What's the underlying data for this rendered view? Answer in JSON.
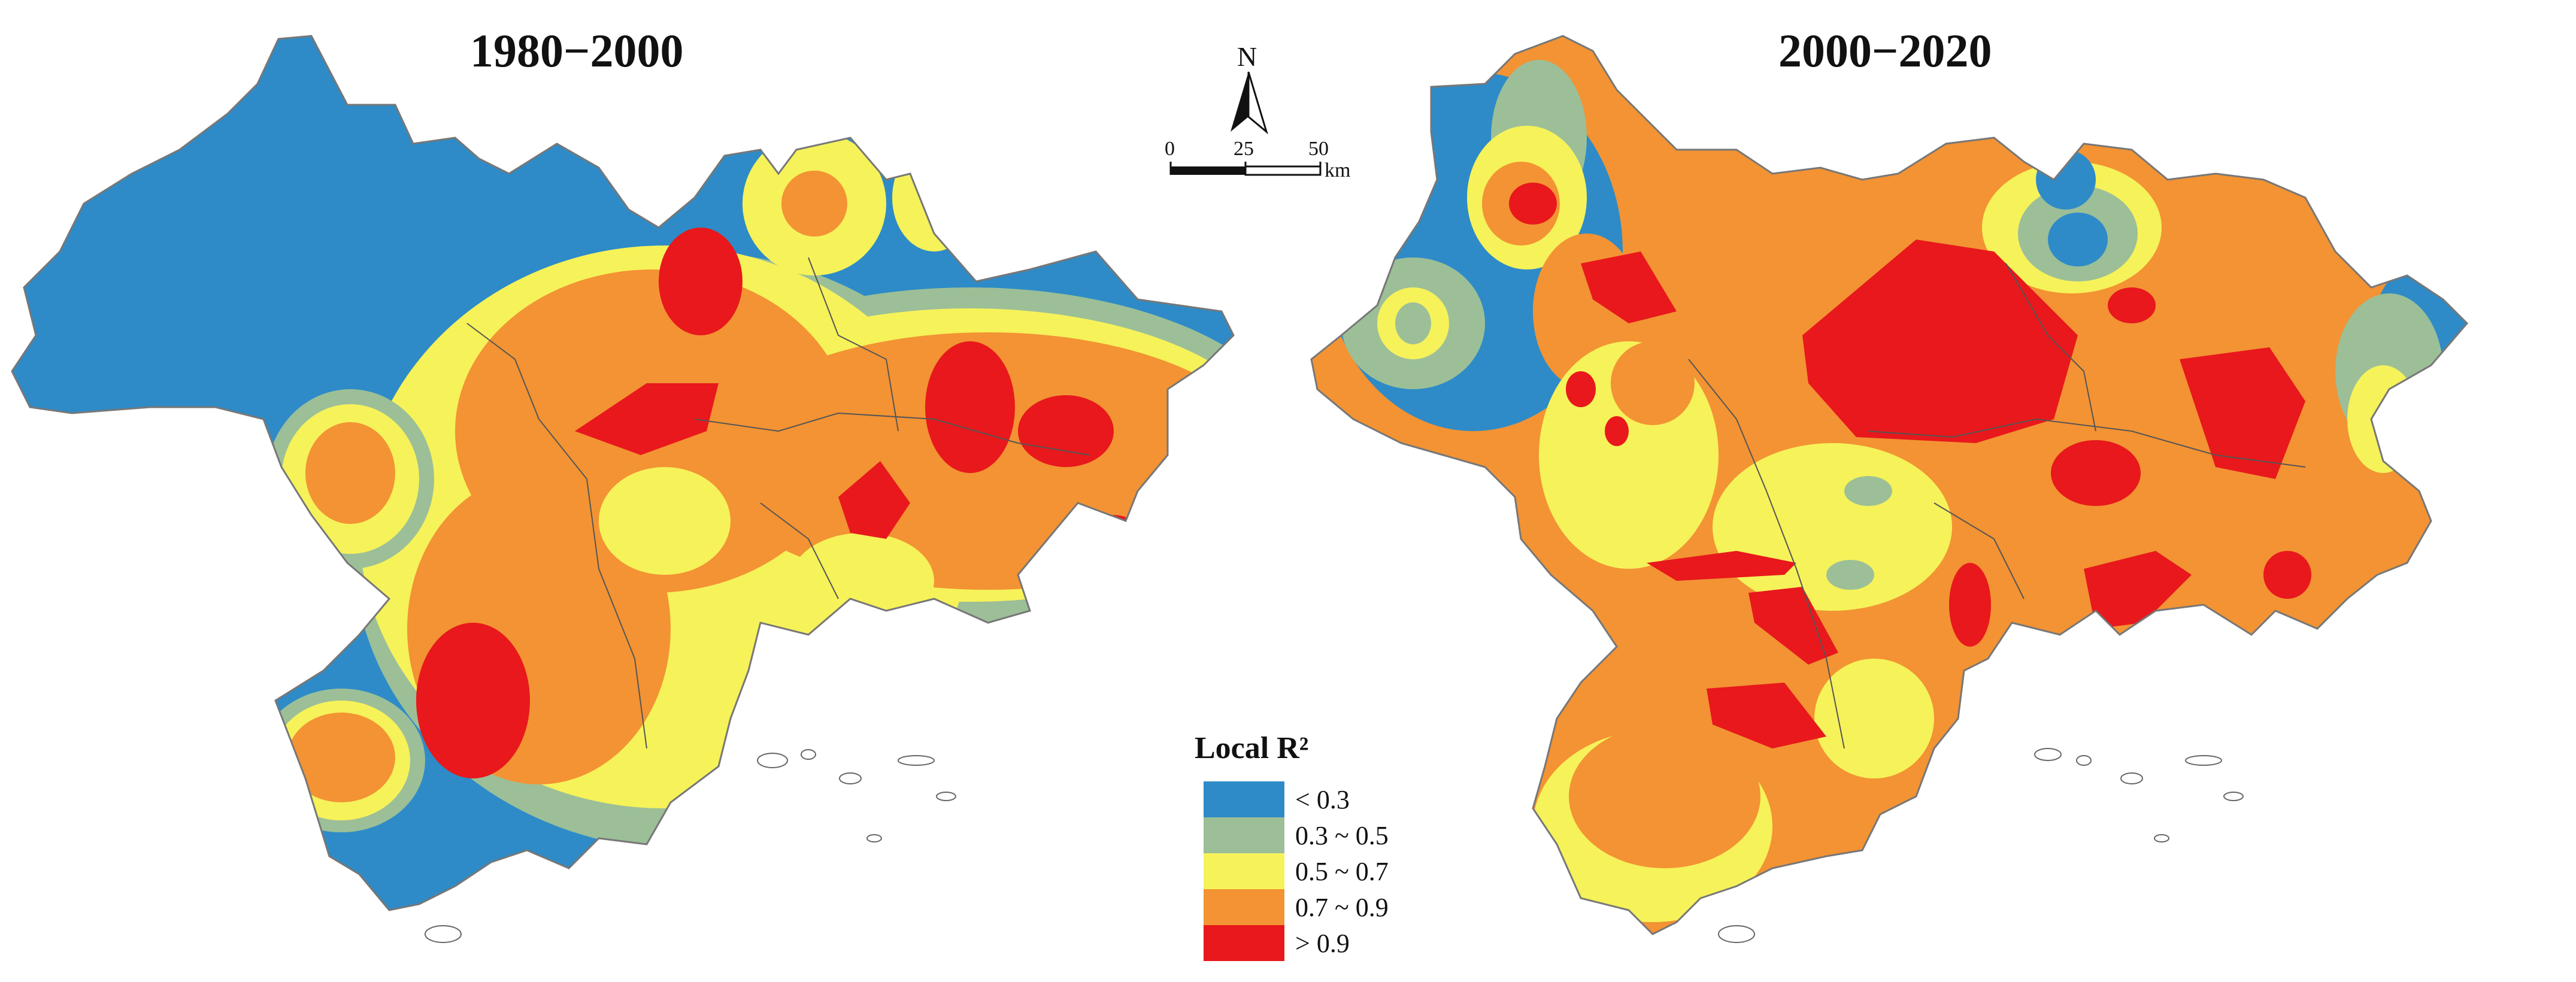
{
  "panels": [
    {
      "title": "1980−2000"
    },
    {
      "title": "2000−2020"
    }
  ],
  "north_arrow": {
    "label": "N",
    "icon": "north-arrow-icon"
  },
  "scale_bar": {
    "ticks": [
      "0",
      "25",
      "50"
    ],
    "unit": "km"
  },
  "legend": {
    "title": "Local R²",
    "items": [
      {
        "label": "< 0.3",
        "color": "#2e8bc7"
      },
      {
        "label": "0.3 ~ 0.5",
        "color": "#9cbf98"
      },
      {
        "label": "0.5 ~ 0.7",
        "color": "#f6f25a"
      },
      {
        "label": "0.7 ~ 0.9",
        "color": "#f39333"
      },
      {
        "label": "> 0.9",
        "color": "#e8181c"
      }
    ]
  }
}
